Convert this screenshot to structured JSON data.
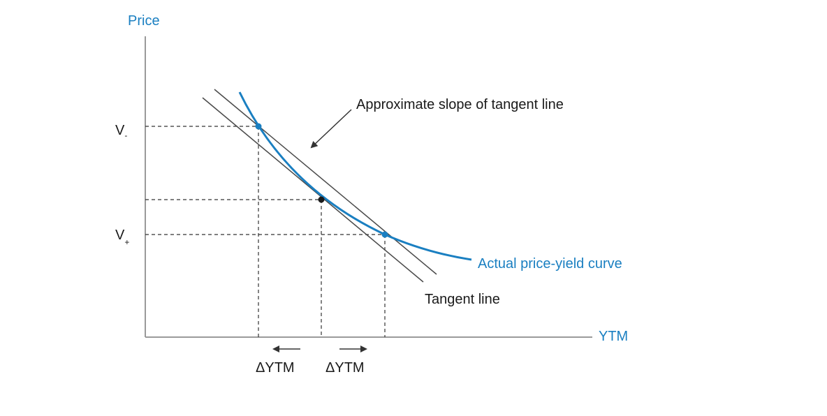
{
  "labels": {
    "y_axis": "Price",
    "x_axis": "YTM",
    "v_minus_main": "V",
    "v_minus_sub": "-",
    "v_plus_main": "V",
    "v_plus_sub": "+",
    "approx_slope": "Approximate slope of tangent line",
    "actual_curve": "Actual price-yield curve",
    "tangent_line": "Tangent line",
    "delta_ytm_left": "ΔYTM",
    "delta_ytm_right": "ΔYTM"
  },
  "colors": {
    "curve": "#1a7fc1",
    "axis_label": "#1a7fc1",
    "lines": "#4a4a4a",
    "text": "#1a1a1a"
  },
  "icons": {
    "left_arrow": "left-arrow-icon",
    "right_arrow": "right-arrow-icon",
    "pointer_arrow": "pointer-arrow-icon"
  }
}
